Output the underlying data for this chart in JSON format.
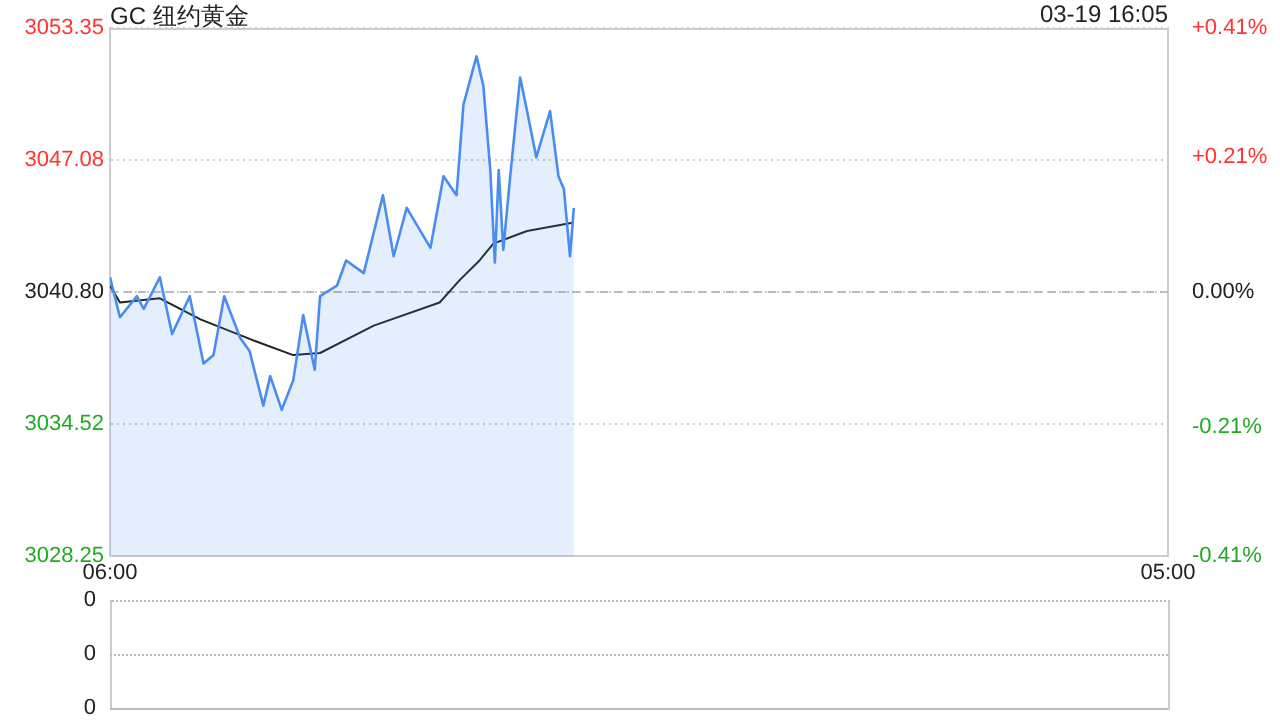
{
  "chart_data": [
    {
      "type": "area",
      "title": "GC 纽约黄金",
      "subtitle": "03-19 16:05",
      "xlim": [
        "--03-19T06:00",
        "--03-20T05:00"
      ],
      "xticks": [
        {
          "value": "--03-19T06:00",
          "label": "06:00"
        },
        {
          "value": "--03-20T05:00",
          "label": "05:00"
        }
      ],
      "ylim": [
        3028.25,
        3053.35
      ],
      "yticks": [
        3028.25,
        3034.52,
        {
          "value": 3040.8,
          "label": "3040.80"
        },
        3047.08,
        3053.35
      ],
      "y2lim": [
        -0.41,
        0.41
      ],
      "y2ticks": [
        {
          "value": -0.41,
          "label": "-0.41%"
        },
        {
          "value": -0.21,
          "label": "-0.21%"
        },
        {
          "value": 0,
          "label": "0.00%"
        },
        {
          "value": 0.21,
          "label": "+0.21%"
        },
        {
          "value": 0.41,
          "label": "+0.41%"
        }
      ],
      "grid": "y",
      "legend": false,
      "marker": "none",
      "ref_lines": [
        {
          "axis": "y",
          "value": 3040.8,
          "line_style": "dashed",
          "color": "#bbbbbb"
        }
      ],
      "series": [
        {
          "color": "#4a8cf0",
          "x": [
            "--03-19T06:00",
            "--03-19T06:13",
            "--03-19T06:35",
            "--03-19T06:44",
            "--03-19T07:05",
            "--03-19T07:21",
            "--03-19T07:44",
            "--03-19T08:02",
            "--03-19T08:15",
            "--03-19T08:29",
            "--03-19T08:50",
            "--03-19T09:02",
            "--03-19T09:20",
            "--03-19T09:29",
            "--03-19T09:44",
            "--03-19T09:59",
            "--03-19T10:12",
            "--03-19T10:27",
            "--03-19T10:34",
            "--03-19T10:56",
            "--03-19T11:08",
            "--03-19T11:31",
            "--03-19T11:56",
            "--03-19T12:10",
            "--03-19T12:27",
            "--03-19T12:58",
            "--03-19T13:15",
            "--03-19T13:32",
            "--03-19T13:41",
            "--03-19T13:58",
            "--03-19T14:07",
            "--03-19T14:16",
            "--03-19T14:22",
            "--03-19T14:27",
            "--03-19T14:33",
            "--03-19T14:42",
            "--03-19T14:55",
            "--03-19T15:04",
            "--03-19T15:16",
            "--03-19T15:34",
            "--03-19T15:45",
            "--03-19T15:52",
            "--03-19T16:00",
            "--03-19T16:05"
          ],
          "values": [
            3041.5,
            3039.6,
            3040.6,
            3040.0,
            3041.5,
            3038.8,
            3040.6,
            3037.4,
            3037.8,
            3040.6,
            3038.6,
            3038.0,
            3035.4,
            3036.8,
            3035.2,
            3036.6,
            3039.7,
            3037.1,
            3040.6,
            3041.1,
            3042.3,
            3041.7,
            3045.4,
            3042.5,
            3044.8,
            3042.9,
            3046.3,
            3045.4,
            3049.7,
            3052.0,
            3050.6,
            3046.6,
            3042.2,
            3046.6,
            3042.8,
            3046.3,
            3051.0,
            3049.4,
            3047.2,
            3049.4,
            3046.3,
            3045.7,
            3042.5,
            3044.8
          ]
        },
        {
          "type": "line",
          "color": "#222222",
          "x": [
            "--03-19T06:00",
            "--03-19T06:13",
            "--03-19T07:05",
            "--03-19T07:58",
            "--03-19T09:07",
            "--03-19T09:59",
            "--03-19T10:34",
            "--03-19T11:44",
            "--03-19T13:10",
            "--03-19T13:37",
            "--03-19T14:02",
            "--03-19T14:20",
            "--03-19T15:04",
            "--03-19T16:05"
          ],
          "values": [
            3041.1,
            3040.3,
            3040.5,
            3039.5,
            3038.5,
            3037.8,
            3037.9,
            3039.2,
            3040.3,
            3041.4,
            3042.3,
            3043.1,
            3043.7,
            3044.1
          ]
        }
      ]
    },
    {
      "type": "other",
      "annotations": [
        "0",
        "0",
        "0"
      ]
    }
  ]
}
